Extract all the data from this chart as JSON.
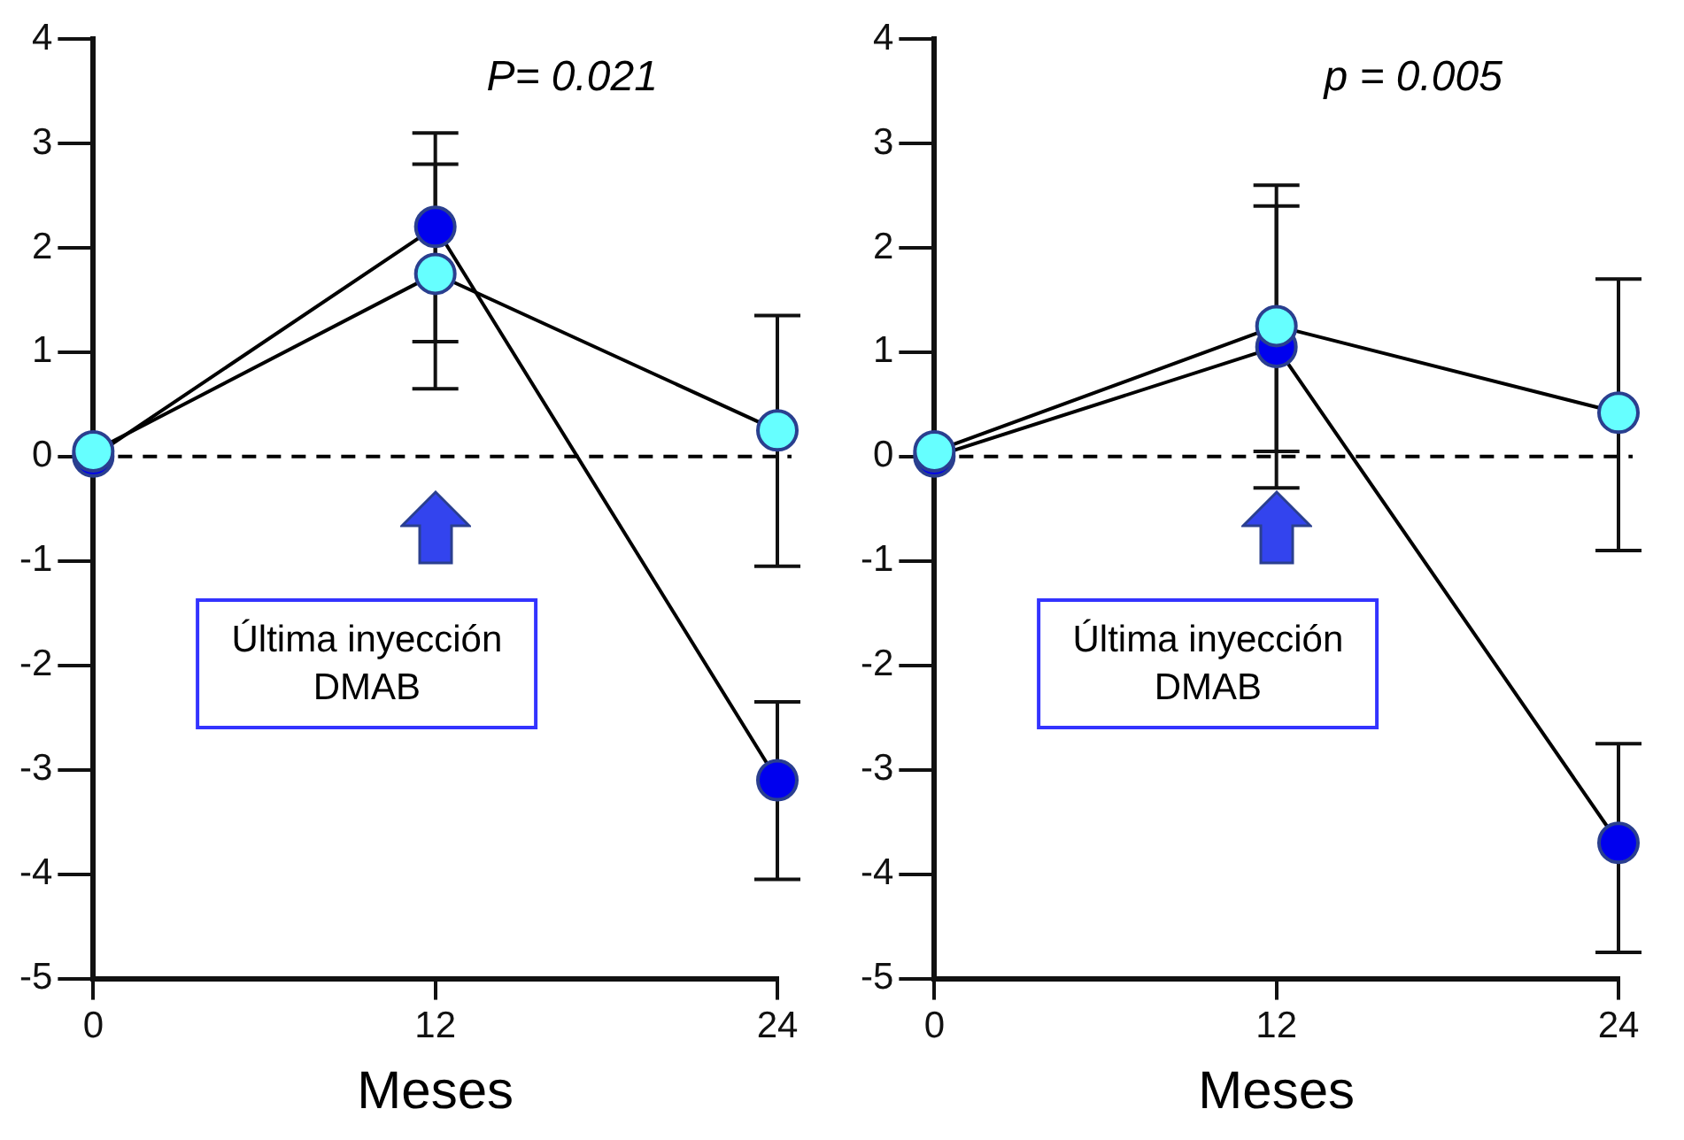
{
  "chart_data": [
    {
      "type": "line",
      "xlabel": "Meses",
      "x": [
        0,
        12,
        24
      ],
      "xlim": [
        0,
        24
      ],
      "xticks": [
        0,
        12,
        24
      ],
      "ylim": [
        -5,
        4
      ],
      "yticks": [
        -5,
        -4,
        -3,
        -2,
        -1,
        0,
        1,
        2,
        3,
        4
      ],
      "grid": false,
      "legend": false,
      "marker": "circle",
      "line_style": "solid",
      "series": [
        {
          "color": "#0000ee",
          "values": [
            0,
            2.2,
            -3.1
          ],
          "errors": [
            null,
            [
              1.1,
              3.1
            ],
            [
              -4.05,
              -2.35
            ]
          ]
        },
        {
          "color": "#66ffff",
          "values": [
            0.05,
            1.75,
            0.25
          ],
          "errors": [
            null,
            [
              0.65,
              2.8
            ],
            [
              -1.05,
              1.35
            ]
          ]
        }
      ],
      "ref_lines": [
        {
          "axis": "y",
          "value": 0,
          "line_style": "dashed",
          "color": "#000000"
        }
      ],
      "annotations": [
        "P= 0.021",
        "Última inyección\nDMAB"
      ]
    },
    {
      "type": "line",
      "xlabel": "Meses",
      "x": [
        0,
        12,
        24
      ],
      "xlim": [
        0,
        24
      ],
      "xticks": [
        0,
        12,
        24
      ],
      "ylim": [
        -5,
        4
      ],
      "yticks": [
        -5,
        -4,
        -3,
        -2,
        -1,
        0,
        1,
        2,
        3,
        4
      ],
      "grid": false,
      "legend": false,
      "marker": "circle",
      "line_style": "solid",
      "series": [
        {
          "color": "#0000ee",
          "values": [
            0,
            1.05,
            -3.7
          ],
          "errors": [
            null,
            [
              -0.3,
              2.4
            ],
            [
              -4.75,
              -2.75
            ]
          ]
        },
        {
          "color": "#66ffff",
          "values": [
            0.05,
            1.25,
            0.42
          ],
          "errors": [
            null,
            [
              0.05,
              2.6
            ],
            [
              -0.9,
              1.7
            ]
          ]
        }
      ],
      "ref_lines": [
        {
          "axis": "y",
          "value": 0,
          "line_style": "dashed",
          "color": "#000000"
        }
      ],
      "annotations": [
        "p = 0.005",
        "Última inyección\nDMAB"
      ]
    }
  ]
}
